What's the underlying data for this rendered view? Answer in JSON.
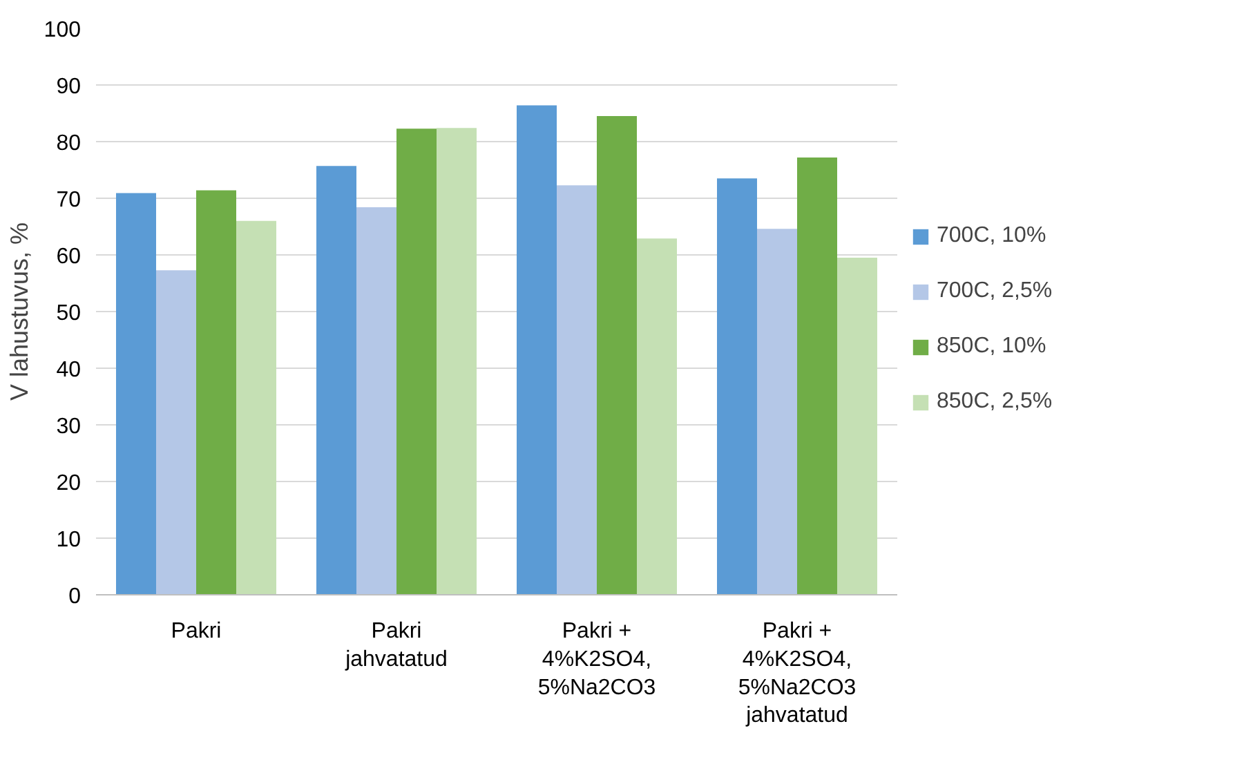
{
  "chart_data": {
    "type": "bar",
    "ylabel": "V lahustuvus, %",
    "categories": [
      "Pakri",
      "Pakri\njahvatatud",
      "Pakri +\n4%K2SO4,\n5%Na2CO3",
      "Pakri +\n4%K2SO4,\n5%Na2CO3\njahvatatud"
    ],
    "series": [
      {
        "name": "700C, 10%",
        "color": "#5b9bd5",
        "values": [
          70.9,
          75.7,
          86.4,
          73.5
        ]
      },
      {
        "name": "700C, 2,5%",
        "color": "#b4c7e7",
        "values": [
          57.3,
          68.4,
          72.3,
          64.6
        ]
      },
      {
        "name": "850C, 10%",
        "color": "#70ad47",
        "values": [
          71.4,
          82.3,
          84.5,
          77.2
        ]
      },
      {
        "name": "850C, 2,5%",
        "color": "#c5e0b4",
        "values": [
          66.0,
          82.4,
          62.9,
          59.5
        ]
      }
    ],
    "ylim": [
      0,
      100
    ],
    "yticks": [
      0,
      10,
      20,
      30,
      40,
      50,
      60,
      70,
      80,
      90,
      100
    ],
    "grid": "y",
    "legend": "right"
  }
}
